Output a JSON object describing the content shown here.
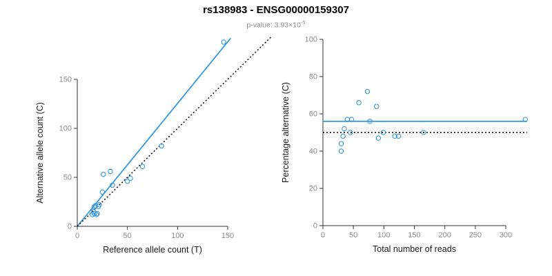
{
  "header": {
    "title": "rs138983 - ENSG00000159307",
    "pvalue_label": "p-value: ",
    "pvalue_base": "3.93×10",
    "pvalue_exponent": "-5"
  },
  "colors": {
    "accent_blue": "#3399E0",
    "axis_line": "#333333",
    "tick_label": "#8a8a8a",
    "axis_title": "#1a1a1a"
  },
  "chart_data": [
    {
      "type": "scatter",
      "title": "",
      "xlabel": "Reference allele count (T)",
      "ylabel": "Alternative allele count (C)",
      "xlim": [
        0,
        160
      ],
      "ylim": [
        0,
        195
      ],
      "xticks": [
        0,
        50,
        100,
        150
      ],
      "yticks": [
        0,
        50,
        100,
        150
      ],
      "grid": false,
      "point_color": "#3399E0",
      "points": [
        [
          15,
          12
        ],
        [
          16,
          15
        ],
        [
          17,
          20
        ],
        [
          17,
          13
        ],
        [
          18,
          21
        ],
        [
          19,
          12
        ],
        [
          20,
          13
        ],
        [
          21,
          20
        ],
        [
          22,
          22
        ],
        [
          25,
          35
        ],
        [
          26,
          53
        ],
        [
          33,
          56
        ],
        [
          35,
          42
        ],
        [
          50,
          46
        ],
        [
          53,
          49
        ],
        [
          65,
          61
        ],
        [
          84,
          82
        ],
        [
          146,
          188
        ]
      ],
      "lines": [
        {
          "name": "regression-line",
          "style": "solid",
          "color": "#3399E0",
          "x1": 0,
          "y1": 0,
          "x2": 153,
          "y2": 192
        },
        {
          "name": "identity-line",
          "style": "dotted",
          "color": "#000000",
          "x1": 0,
          "y1": 0,
          "x2": 193,
          "y2": 193
        }
      ]
    },
    {
      "type": "scatter",
      "title": "",
      "xlabel": "Total number of reads",
      "ylabel": "Percentage alternative (C)",
      "xlim": [
        0,
        335
      ],
      "ylim": [
        0,
        100
      ],
      "xticks": [
        0,
        50,
        100,
        150,
        200,
        250,
        300
      ],
      "yticks": [
        0,
        20,
        40,
        60,
        80,
        100
      ],
      "grid": false,
      "point_color": "#3399E0",
      "points": [
        [
          30,
          40
        ],
        [
          30,
          44
        ],
        [
          33,
          48
        ],
        [
          35,
          52
        ],
        [
          40,
          57
        ],
        [
          45,
          50
        ],
        [
          47,
          57
        ],
        [
          59,
          66
        ],
        [
          73,
          72
        ],
        [
          77,
          56
        ],
        [
          88,
          64
        ],
        [
          91,
          47
        ],
        [
          99,
          50
        ],
        [
          118,
          48
        ],
        [
          124,
          48
        ],
        [
          165,
          50
        ],
        [
          332,
          57
        ]
      ],
      "lines": [
        {
          "name": "mean-percentage-line",
          "style": "solid",
          "color": "#3399E0",
          "x1": 0,
          "y1": 56,
          "x2": 335,
          "y2": 56
        },
        {
          "name": "expected-50-line",
          "style": "dotted",
          "color": "#000000",
          "x1": 0,
          "y1": 50,
          "x2": 335,
          "y2": 50
        }
      ]
    }
  ]
}
